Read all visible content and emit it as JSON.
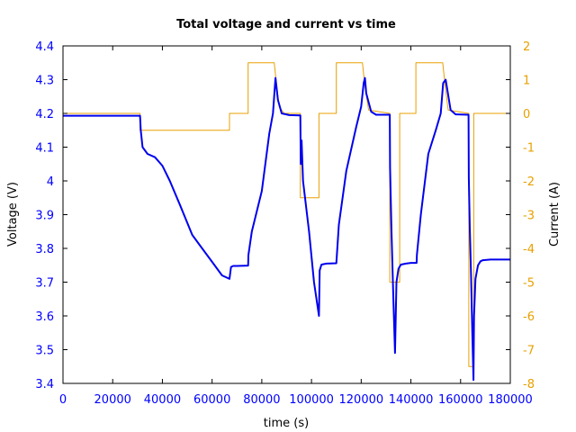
{
  "chart_data": {
    "type": "line",
    "title": "Total voltage and current vs time",
    "xlabel": "time (s)",
    "ylabel_left": "Voltage (V)",
    "ylabel_right": "Current (A)",
    "xlim": [
      0,
      180000
    ],
    "ylim_left": [
      3.4,
      4.4
    ],
    "ylim_right": [
      -8,
      2
    ],
    "x_ticks": [
      "0",
      "20000",
      "40000",
      "60000",
      "80000",
      "100000",
      "120000",
      "140000",
      "160000",
      "180000"
    ],
    "y_left_ticks": [
      "3.4",
      "3.5",
      "3.6",
      "3.7",
      "3.8",
      "3.9",
      "4",
      "4.1",
      "4.2",
      "4.3",
      "4.4"
    ],
    "y_right_ticks": [
      "-8",
      "-7",
      "-6",
      "-5",
      "-4",
      "-3",
      "-2",
      "-1",
      "0",
      "1",
      "2"
    ],
    "grid": false,
    "series": [
      {
        "axis": "left",
        "color": "#0000ee",
        "x": [
          0,
          31000,
          31300,
          32000,
          34000,
          37000,
          40000,
          43000,
          47000,
          52000,
          56000,
          60000,
          64000,
          67000,
          67600,
          68500,
          70000,
          74500,
          74600,
          76000,
          80000,
          83000,
          84500,
          85500,
          86500,
          88000,
          91000,
          95500,
          95700,
          96000,
          96300,
          96600,
          99000,
          101000,
          103000,
          103300,
          104000,
          106000,
          110000,
          110200,
          111000,
          114000,
          118000,
          120000,
          121000,
          121500,
          122000,
          124000,
          126000,
          131500,
          131600,
          131800,
          132200,
          133000,
          133600,
          134200,
          135000,
          136000,
          138000,
          140000,
          142300,
          142400,
          144000,
          147000,
          150000,
          152000,
          153000,
          154000,
          156000,
          158000,
          163200,
          163300,
          163700,
          164200,
          164700,
          165200,
          165400,
          166000,
          167000,
          168000,
          169000,
          172000,
          180000
        ],
        "y": [
          4.193,
          4.193,
          4.15,
          4.1,
          4.08,
          4.07,
          4.045,
          4.0,
          3.93,
          3.84,
          3.8,
          3.76,
          3.72,
          3.71,
          3.745,
          3.748,
          3.748,
          3.749,
          3.78,
          3.85,
          3.97,
          4.14,
          4.2,
          4.305,
          4.24,
          4.2,
          4.195,
          4.194,
          4.05,
          4.12,
          4.06,
          4.0,
          3.85,
          3.7,
          3.6,
          3.735,
          3.752,
          3.755,
          3.756,
          3.78,
          3.87,
          4.03,
          4.16,
          4.22,
          4.29,
          4.305,
          4.26,
          4.205,
          4.196,
          4.196,
          4.04,
          3.98,
          3.85,
          3.64,
          3.49,
          3.7,
          3.74,
          3.752,
          3.755,
          3.757,
          3.757,
          3.78,
          3.9,
          4.08,
          4.15,
          4.2,
          4.29,
          4.3,
          4.21,
          4.197,
          4.196,
          4.01,
          3.86,
          3.72,
          3.55,
          3.41,
          3.6,
          3.71,
          3.75,
          3.762,
          3.765,
          3.767,
          3.767
        ]
      },
      {
        "axis": "right",
        "color": "#e8a000",
        "x": [
          0,
          31000,
          31000,
          67000,
          67000,
          74500,
          74500,
          85000,
          86000,
          87000,
          89000,
          95500,
          95500,
          103000,
          103000,
          110000,
          110000,
          120500,
          121500,
          123000,
          131500,
          131500,
          135500,
          135500,
          142000,
          142000,
          152800,
          153800,
          155000,
          163300,
          163300,
          165300,
          165300,
          180000
        ],
        "y": [
          0,
          0,
          -0.5,
          -0.5,
          0,
          0,
          1.5,
          1.5,
          0.8,
          0.2,
          0,
          0,
          -2.5,
          -2.5,
          0,
          0,
          1.5,
          1.5,
          0.8,
          0.1,
          0,
          -5,
          -5,
          0,
          0,
          1.5,
          1.5,
          0.8,
          0.1,
          0,
          -7.5,
          -7.5,
          0,
          0
        ]
      }
    ]
  }
}
